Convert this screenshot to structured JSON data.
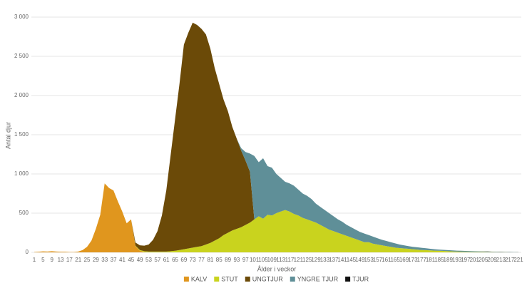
{
  "chart_data": {
    "type": "stacked-area",
    "x_label": "Ålder i veckor",
    "y_label": "Antal djur",
    "xlim": [
      1,
      221
    ],
    "ylim": [
      0,
      3000
    ],
    "xticks": [
      1,
      5,
      9,
      13,
      17,
      21,
      25,
      29,
      33,
      37,
      41,
      45,
      49,
      53,
      57,
      61,
      65,
      69,
      73,
      77,
      81,
      85,
      89,
      93,
      97,
      101,
      105,
      109,
      113,
      117,
      121,
      125,
      129,
      133,
      137,
      141,
      145,
      149,
      153,
      157,
      161,
      165,
      169,
      173,
      177,
      181,
      185,
      189,
      193,
      197,
      201,
      205,
      209,
      213,
      217,
      221
    ],
    "yticks": [
      0,
      500,
      {
        "value": 1000,
        "label": "1 000"
      },
      {
        "value": 1500,
        "label": "1 500"
      },
      {
        "value": 2000,
        "label": "2 000"
      },
      {
        "value": 2500,
        "label": "2 500"
      },
      {
        "value": 3000,
        "label": "3 000"
      }
    ],
    "grid": true,
    "legend": "bottom",
    "x": [
      1,
      3,
      5,
      7,
      9,
      11,
      13,
      15,
      17,
      19,
      21,
      23,
      25,
      27,
      29,
      31,
      33,
      35,
      37,
      39,
      41,
      43,
      45,
      47,
      49,
      51,
      53,
      55,
      57,
      59,
      61,
      63,
      65,
      67,
      69,
      71,
      73,
      75,
      77,
      79,
      81,
      83,
      85,
      87,
      89,
      91,
      93,
      95,
      97,
      99,
      101,
      103,
      105,
      107,
      109,
      111,
      113,
      115,
      117,
      119,
      121,
      123,
      125,
      127,
      129,
      131,
      133,
      135,
      137,
      139,
      141,
      143,
      145,
      147,
      149,
      151,
      153,
      155,
      157,
      159,
      161,
      163,
      165,
      167,
      169,
      171,
      173,
      175,
      177,
      179,
      181,
      183,
      185,
      187,
      189,
      191,
      193,
      195,
      197,
      199,
      201,
      203,
      205,
      207,
      209,
      211,
      213,
      215,
      217,
      219,
      221
    ],
    "series": [
      {
        "name": "KALV",
        "color": "#e0961e",
        "values": [
          5,
          8,
          12,
          10,
          15,
          10,
          8,
          8,
          5,
          5,
          10,
          30,
          70,
          150,
          300,
          480,
          880,
          820,
          790,
          650,
          520,
          370,
          420,
          80,
          20,
          5,
          0,
          0,
          0,
          0,
          0,
          0,
          0,
          0,
          0,
          0,
          0,
          0,
          0,
          0,
          0,
          0,
          0,
          0,
          0,
          0,
          0,
          0,
          0,
          0,
          0,
          0,
          0,
          0,
          0,
          0,
          0,
          0,
          0,
          0,
          0,
          0,
          0,
          0,
          0,
          0,
          0,
          0,
          0,
          0,
          0,
          0,
          0,
          0,
          0,
          0,
          0,
          0,
          0,
          0,
          0,
          0,
          0,
          0,
          0,
          0,
          0,
          0,
          0,
          0,
          0,
          0,
          0,
          0,
          0,
          0,
          0,
          0,
          0,
          0,
          0,
          0,
          0,
          0,
          0,
          0,
          0,
          0,
          0,
          0,
          0
        ]
      },
      {
        "name": "STUT",
        "color": "#c9d31e",
        "values": [
          0,
          0,
          0,
          0,
          0,
          0,
          0,
          0,
          0,
          0,
          0,
          0,
          0,
          0,
          0,
          0,
          0,
          0,
          0,
          0,
          0,
          0,
          0,
          5,
          10,
          10,
          10,
          10,
          10,
          10,
          10,
          15,
          20,
          30,
          40,
          50,
          60,
          70,
          80,
          100,
          120,
          150,
          180,
          220,
          250,
          280,
          300,
          320,
          350,
          380,
          420,
          460,
          430,
          480,
          470,
          500,
          520,
          540,
          520,
          490,
          470,
          440,
          420,
          400,
          380,
          350,
          320,
          290,
          270,
          250,
          230,
          210,
          190,
          170,
          150,
          130,
          130,
          110,
          100,
          90,
          80,
          70,
          60,
          55,
          50,
          45,
          40,
          35,
          30,
          28,
          25,
          22,
          20,
          18,
          15,
          12,
          10,
          8,
          7,
          6,
          5,
          5,
          4,
          3,
          3,
          2,
          2,
          2,
          1,
          1,
          1
        ]
      },
      {
        "name": "UNGTJUR",
        "color": "#6b4a08",
        "values": [
          0,
          0,
          0,
          0,
          0,
          0,
          0,
          0,
          0,
          0,
          0,
          0,
          0,
          0,
          0,
          0,
          0,
          0,
          0,
          0,
          0,
          0,
          0,
          40,
          60,
          70,
          90,
          150,
          260,
          460,
          780,
          1230,
          1680,
          2120,
          2610,
          2750,
          2870,
          2830,
          2770,
          2680,
          2480,
          2200,
          1970,
          1730,
          1550,
          1320,
          1150,
          980,
          820,
          650,
          0,
          0,
          0,
          0,
          0,
          0,
          0,
          0,
          0,
          0,
          0,
          0,
          0,
          0,
          0,
          0,
          0,
          0,
          0,
          0,
          0,
          0,
          0,
          0,
          0,
          0,
          0,
          0,
          0,
          0,
          0,
          0,
          0,
          0,
          0,
          0,
          0,
          0,
          0,
          0,
          0,
          0,
          0,
          0,
          0,
          0,
          0,
          0,
          0,
          0,
          0,
          0,
          0,
          0,
          0,
          0,
          0,
          0,
          0,
          0,
          0
        ]
      },
      {
        "name": "YNGRE TJUR",
        "color": "#5f8f98",
        "values": [
          0,
          0,
          0,
          0,
          0,
          0,
          0,
          0,
          0,
          0,
          0,
          0,
          0,
          0,
          0,
          0,
          0,
          0,
          0,
          0,
          0,
          0,
          0,
          0,
          0,
          0,
          0,
          0,
          0,
          0,
          0,
          0,
          0,
          0,
          0,
          0,
          0,
          0,
          0,
          0,
          0,
          0,
          0,
          0,
          0,
          0,
          0,
          30,
          110,
          230,
          810,
          690,
          770,
          620,
          610,
          500,
          430,
          360,
          360,
          360,
          330,
          310,
          300,
          280,
          240,
          230,
          220,
          210,
          190,
          170,
          160,
          140,
          130,
          120,
          110,
          110,
          90,
          90,
          80,
          70,
          65,
          60,
          55,
          45,
          40,
          35,
          30,
          30,
          28,
          24,
          20,
          18,
          15,
          14,
          13,
          13,
          12,
          12,
          11,
          10,
          9,
          7,
          6,
          6,
          5,
          5,
          4,
          3,
          4,
          3,
          2
        ]
      },
      {
        "name": "TJUR",
        "color": "#111111",
        "values": [
          0,
          0,
          0,
          0,
          0,
          0,
          0,
          0,
          0,
          0,
          0,
          0,
          0,
          0,
          0,
          0,
          0,
          0,
          0,
          0,
          0,
          0,
          0,
          0,
          0,
          0,
          0,
          0,
          0,
          0,
          0,
          0,
          0,
          0,
          0,
          0,
          0,
          0,
          0,
          0,
          0,
          0,
          0,
          0,
          0,
          0,
          0,
          0,
          0,
          0,
          0,
          0,
          0,
          0,
          0,
          0,
          0,
          0,
          0,
          0,
          0,
          0,
          0,
          0,
          0,
          0,
          0,
          0,
          0,
          0,
          0,
          0,
          0,
          0,
          0,
          0,
          0,
          0,
          0,
          0,
          0,
          0,
          0,
          0,
          0,
          0,
          0,
          0,
          0,
          0,
          0,
          0,
          0,
          0,
          0,
          0,
          0,
          0,
          0,
          0,
          0,
          1,
          1,
          2,
          1,
          1,
          2,
          1,
          1,
          1,
          1
        ]
      }
    ]
  }
}
